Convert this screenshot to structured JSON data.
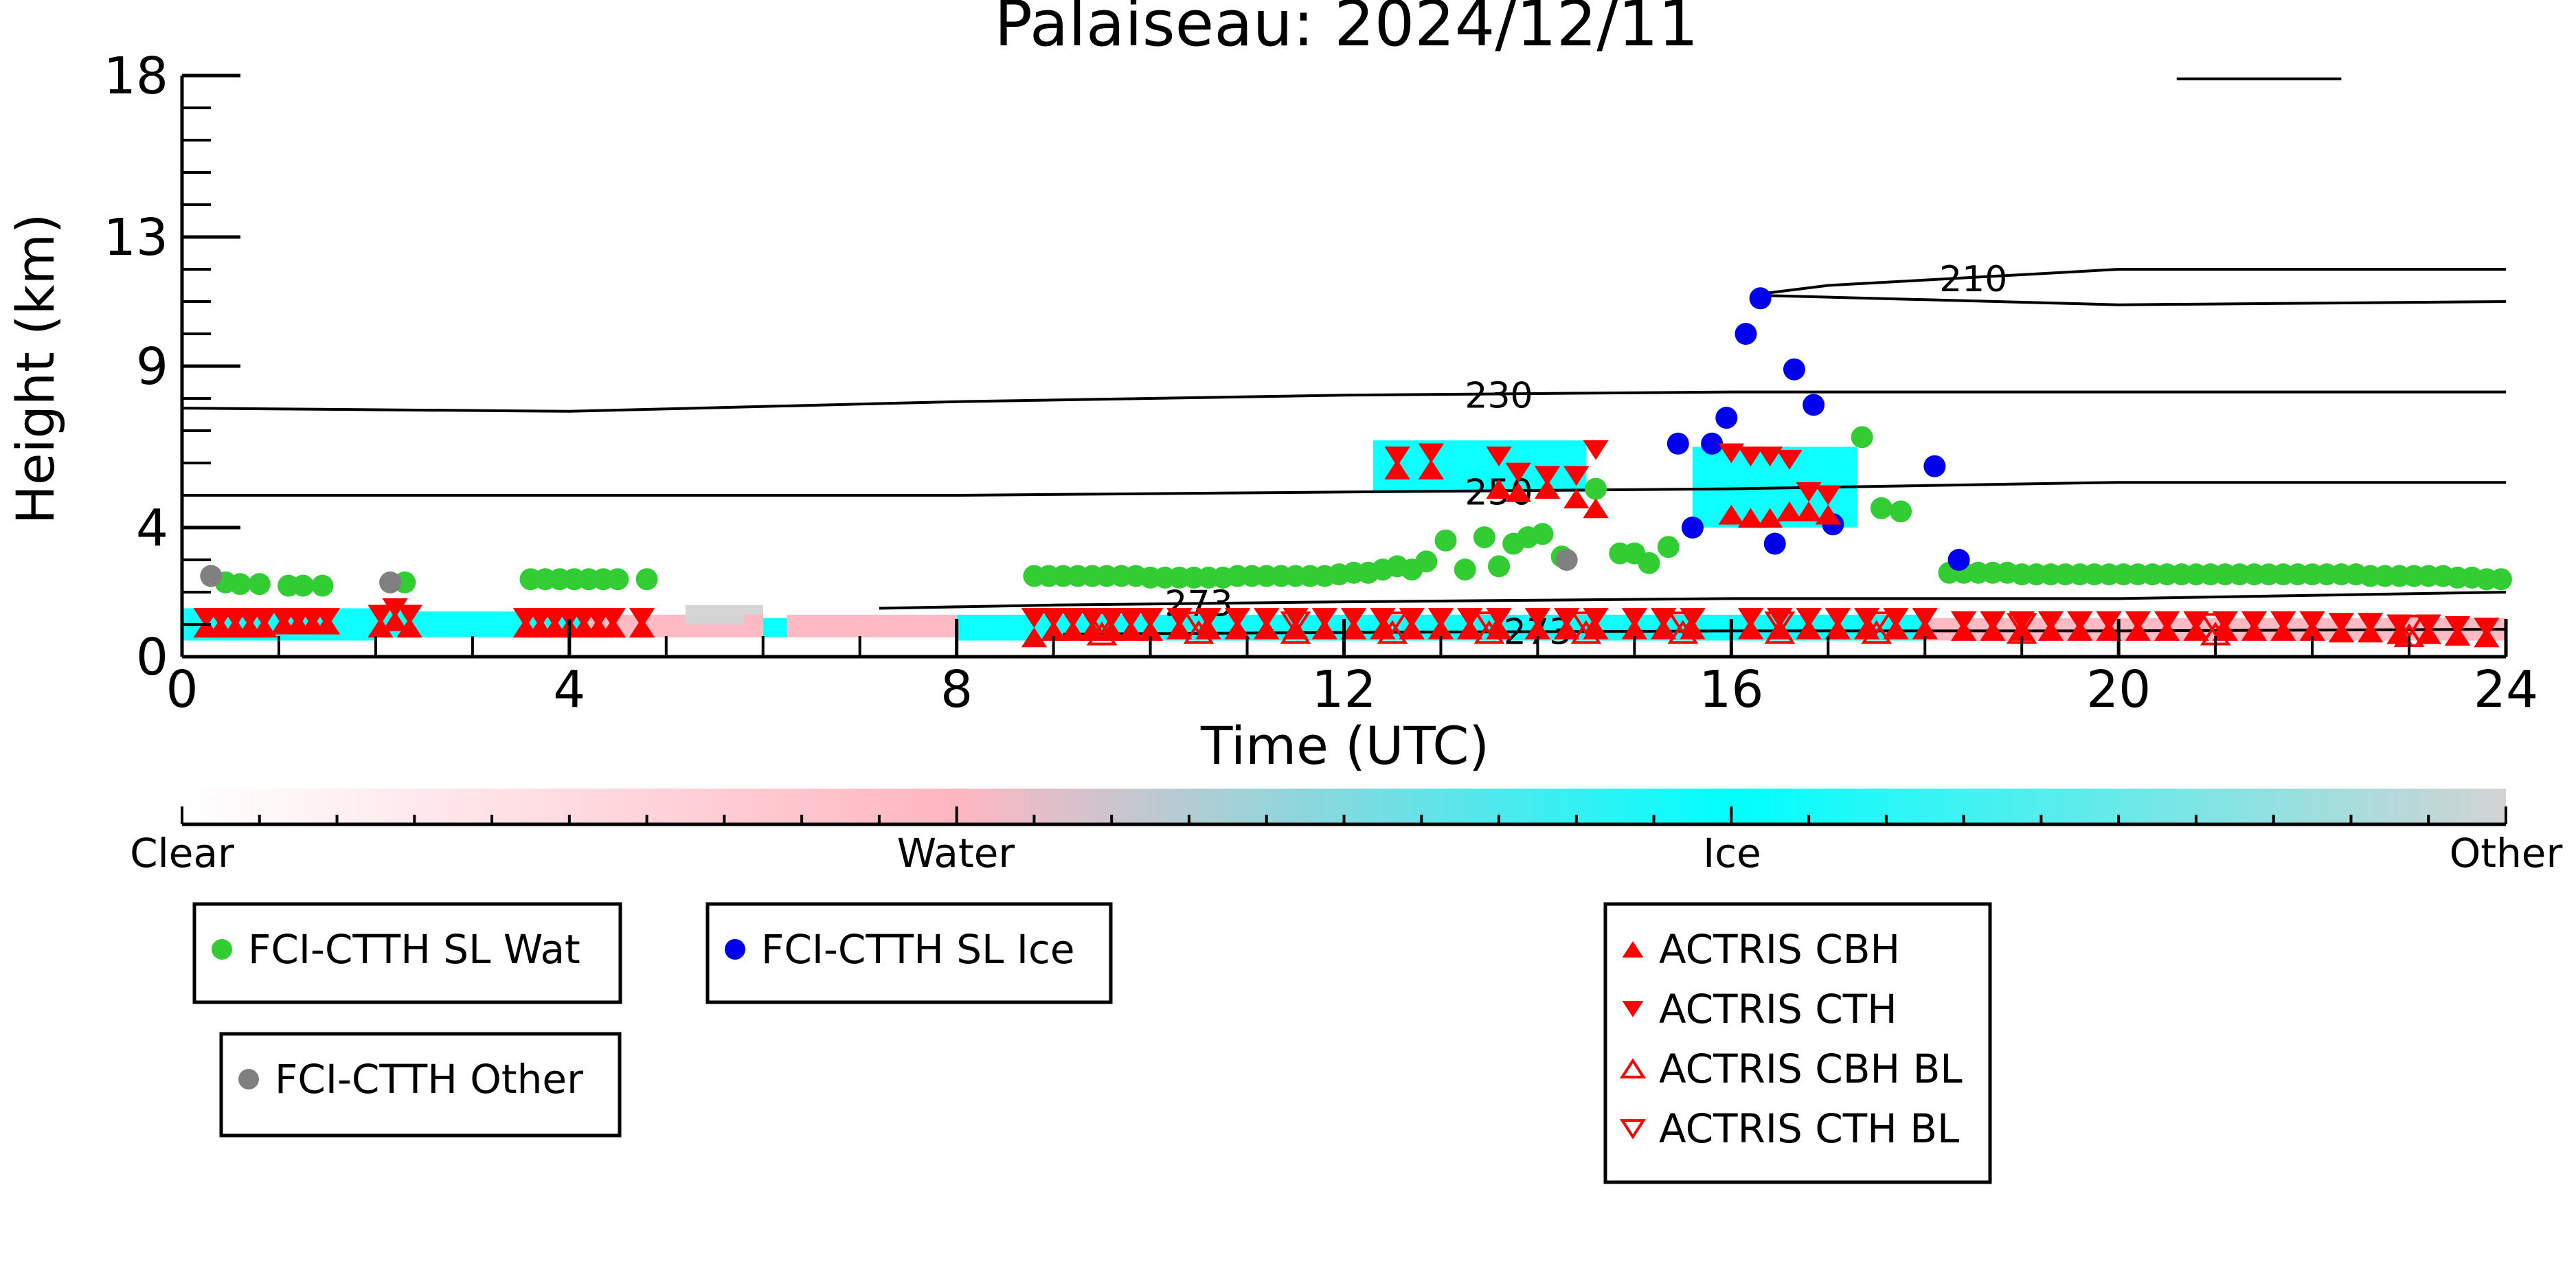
{
  "chart_data": {
    "type": "scatter",
    "title": "Palaiseau: 2024/12/11",
    "xlabel": "Time (UTC)",
    "ylabel": "Height (km)",
    "xlim": [
      0,
      24
    ],
    "ylim": [
      0,
      18
    ],
    "x_ticks": [
      0,
      4,
      8,
      12,
      16,
      20,
      24
    ],
    "y_ticks": [
      0,
      4,
      9,
      13,
      18
    ],
    "grid": false,
    "contours": [
      {
        "label": "210",
        "x": [
          16.2,
          17,
          20,
          24
        ],
        "y": [
          11.2,
          11.5,
          12.0,
          12.0
        ]
      },
      {
        "label": "",
        "x": [
          16.2,
          20,
          24
        ],
        "y": [
          11.2,
          10.9,
          11.0
        ]
      },
      {
        "label": "230",
        "x": [
          0,
          4,
          8,
          12,
          16,
          20,
          24
        ],
        "y": [
          7.7,
          7.6,
          7.9,
          8.1,
          8.2,
          8.2,
          8.2
        ]
      },
      {
        "label": "250",
        "x": [
          0,
          4,
          8,
          12,
          16,
          20,
          24
        ],
        "y": [
          5.0,
          5.0,
          5.0,
          5.1,
          5.2,
          5.4,
          5.4
        ]
      },
      {
        "label": "273",
        "x": [
          7.2,
          9,
          12,
          16,
          20,
          24
        ],
        "y": [
          1.5,
          1.6,
          1.7,
          1.8,
          1.8,
          2.0
        ]
      },
      {
        "label": "273",
        "x": [
          9.1,
          12,
          16,
          20,
          24
        ],
        "y": [
          0.7,
          0.75,
          0.8,
          0.8,
          0.85
        ]
      },
      {
        "label": "",
        "x": [
          20.6,
          22.3
        ],
        "y": [
          17.9,
          17.9
        ]
      }
    ],
    "phase_colorbar": {
      "labels": [
        "Clear",
        "Water",
        "Ice",
        "Other"
      ],
      "colors": [
        "#ffffff",
        "#ffb6c1",
        "#00ffff",
        "#d3d3d3"
      ]
    },
    "phase_bands": [
      {
        "x0": 0.0,
        "x1": 2.0,
        "y0": 0.5,
        "y1": 1.5,
        "color": "#00ffff"
      },
      {
        "x0": 2.0,
        "x1": 4.2,
        "y0": 0.6,
        "y1": 1.4,
        "color": "#00ffff"
      },
      {
        "x0": 4.2,
        "x1": 5.8,
        "y0": 0.6,
        "y1": 1.3,
        "color": "#ffb6c1"
      },
      {
        "x0": 5.2,
        "x1": 6.0,
        "y0": 1.0,
        "y1": 1.6,
        "color": "#d3d3d3"
      },
      {
        "x0": 5.8,
        "x1": 6.0,
        "y0": 0.6,
        "y1": 1.3,
        "color": "#ffb6c1"
      },
      {
        "x0": 6.0,
        "x1": 6.25,
        "y0": 0.6,
        "y1": 1.2,
        "color": "#00ffff"
      },
      {
        "x0": 6.25,
        "x1": 8.0,
        "y0": 0.6,
        "y1": 1.3,
        "color": "#ffb6c1"
      },
      {
        "x0": 8.0,
        "x1": 18.0,
        "y0": 0.5,
        "y1": 1.3,
        "color": "#00ffff"
      },
      {
        "x0": 18.0,
        "x1": 24.0,
        "y0": 0.5,
        "y1": 1.2,
        "color": "#ffb6c1"
      },
      {
        "x0": 12.3,
        "x1": 14.5,
        "y0": 5.1,
        "y1": 6.7,
        "color": "#00ffff"
      },
      {
        "x0": 15.6,
        "x1": 17.3,
        "y0": 4.0,
        "y1": 6.5,
        "color": "#00ffff"
      }
    ],
    "series": [
      {
        "name": "FCI-CTTH SL Wat",
        "marker": "circle",
        "color": "#32cd32",
        "x": [
          0.45,
          0.6,
          0.8,
          1.1,
          1.25,
          1.45,
          2.3,
          3.6,
          3.75,
          3.9,
          4.05,
          4.2,
          4.35,
          4.5,
          4.8,
          8.8,
          8.95,
          9.1,
          9.25,
          9.4,
          9.55,
          9.7,
          9.85,
          10.0,
          10.15,
          10.3,
          10.45,
          10.6,
          10.75,
          10.9,
          11.05,
          11.2,
          11.35,
          11.5,
          11.65,
          11.8,
          11.95,
          12.1,
          12.25,
          12.4,
          12.55,
          12.7,
          12.85,
          13.05,
          13.25,
          13.45,
          13.6,
          13.75,
          13.9,
          14.05,
          14.25,
          14.6,
          14.85,
          15.0,
          15.15,
          15.35,
          17.35,
          17.55,
          17.75,
          18.25,
          18.4,
          18.55,
          18.7,
          18.85,
          19.0,
          19.15,
          19.3,
          19.45,
          19.6,
          19.75,
          19.9,
          20.05,
          20.2,
          20.35,
          20.5,
          20.65,
          20.8,
          20.95,
          21.1,
          21.25,
          21.4,
          21.55,
          21.7,
          21.85,
          22.0,
          22.15,
          22.3,
          22.45,
          22.6,
          22.75,
          22.9,
          23.05,
          23.2,
          23.35,
          23.5,
          23.65,
          23.8,
          23.95
        ],
        "y": [
          2.3,
          2.25,
          2.25,
          2.2,
          2.2,
          2.2,
          2.3,
          2.4,
          2.4,
          2.4,
          2.4,
          2.4,
          2.4,
          2.4,
          2.4,
          2.5,
          2.5,
          2.5,
          2.5,
          2.5,
          2.5,
          2.5,
          2.5,
          2.45,
          2.45,
          2.45,
          2.45,
          2.45,
          2.45,
          2.5,
          2.5,
          2.5,
          2.5,
          2.5,
          2.5,
          2.5,
          2.55,
          2.6,
          2.6,
          2.7,
          2.8,
          2.7,
          2.95,
          3.6,
          2.7,
          3.7,
          2.8,
          3.5,
          3.7,
          3.8,
          3.1,
          5.2,
          3.2,
          3.2,
          2.9,
          3.4,
          6.8,
          4.6,
          4.5,
          2.6,
          2.6,
          2.6,
          2.6,
          2.6,
          2.55,
          2.55,
          2.55,
          2.55,
          2.55,
          2.55,
          2.55,
          2.55,
          2.55,
          2.55,
          2.55,
          2.55,
          2.55,
          2.55,
          2.55,
          2.55,
          2.55,
          2.55,
          2.55,
          2.55,
          2.55,
          2.55,
          2.55,
          2.55,
          2.5,
          2.5,
          2.5,
          2.5,
          2.5,
          2.5,
          2.45,
          2.45,
          2.4,
          2.4
        ]
      },
      {
        "name": "FCI-CTTH SL Ice",
        "marker": "circle",
        "color": "#0000ee",
        "x": [
          15.45,
          15.6,
          15.8,
          15.95,
          16.15,
          16.3,
          16.45,
          16.65,
          16.85,
          17.05,
          18.1,
          18.35
        ],
        "y": [
          6.6,
          4.0,
          6.6,
          7.4,
          10.0,
          11.1,
          3.5,
          8.9,
          7.8,
          4.1,
          5.9,
          3.0
        ]
      },
      {
        "name": "FCI-CTTH Other",
        "marker": "circle",
        "color": "#808080",
        "x": [
          0.3,
          2.15,
          14.3
        ],
        "y": [
          2.5,
          2.3,
          3.0
        ]
      },
      {
        "name": "ACTRIS CBH",
        "marker": "triangle-up",
        "color": "#ff0000",
        "x": [
          0.25,
          0.4,
          0.55,
          0.7,
          0.85,
          1.05,
          1.2,
          1.35,
          1.5,
          2.05,
          2.2,
          2.35,
          3.55,
          3.7,
          3.85,
          4.0,
          4.15,
          4.3,
          4.45,
          4.75,
          8.8,
          9.0,
          9.2,
          9.4,
          9.6,
          9.8,
          10.0,
          10.3,
          10.6,
          10.9,
          11.2,
          11.5,
          11.8,
          12.1,
          12.4,
          12.7,
          13.0,
          13.3,
          13.6,
          14.0,
          14.3,
          14.6,
          15.0,
          15.3,
          15.6,
          16.2,
          16.5,
          16.8,
          17.1,
          17.4,
          17.7,
          18.0,
          18.4,
          18.7,
          19.0,
          19.3,
          19.6,
          19.9,
          20.2,
          20.5,
          20.8,
          21.1,
          21.4,
          21.7,
          22.0,
          22.3,
          22.6,
          22.9,
          23.2,
          23.5,
          23.8,
          12.55,
          12.9,
          13.6,
          13.8,
          14.1,
          14.4,
          14.6,
          16.0,
          16.2,
          16.4,
          16.6,
          16.8,
          17.0
        ],
        "y": [
          0.9,
          0.9,
          0.9,
          0.9,
          0.9,
          1.0,
          1.0,
          1.0,
          1.0,
          0.9,
          1.1,
          0.9,
          0.9,
          0.9,
          0.9,
          0.9,
          0.9,
          0.9,
          0.9,
          0.9,
          0.6,
          0.8,
          0.8,
          0.8,
          0.8,
          0.8,
          0.8,
          0.85,
          0.85,
          0.85,
          0.85,
          0.85,
          0.85,
          0.85,
          0.85,
          0.85,
          0.85,
          0.85,
          0.85,
          0.85,
          0.85,
          0.85,
          0.85,
          0.85,
          0.85,
          0.85,
          0.85,
          0.85,
          0.85,
          0.85,
          0.85,
          0.85,
          0.8,
          0.8,
          0.8,
          0.8,
          0.8,
          0.8,
          0.8,
          0.8,
          0.8,
          0.8,
          0.8,
          0.8,
          0.8,
          0.75,
          0.75,
          0.7,
          0.7,
          0.65,
          0.6,
          5.8,
          5.8,
          5.2,
          5.1,
          5.2,
          4.9,
          4.6,
          4.4,
          4.3,
          4.3,
          4.5,
          4.5,
          4.4
        ]
      },
      {
        "name": "ACTRIS CTH",
        "marker": "triangle-down",
        "color": "#ff0000",
        "x": [
          0.25,
          0.4,
          0.55,
          0.7,
          0.85,
          1.05,
          1.2,
          1.35,
          1.5,
          2.05,
          2.2,
          2.35,
          3.55,
          3.7,
          3.85,
          4.0,
          4.15,
          4.3,
          4.45,
          4.75,
          8.8,
          9.0,
          9.2,
          9.4,
          9.6,
          9.8,
          10.0,
          10.3,
          10.6,
          10.9,
          11.2,
          11.5,
          11.8,
          12.1,
          12.4,
          12.7,
          13.0,
          13.3,
          13.6,
          14.0,
          14.3,
          14.6,
          15.0,
          15.3,
          15.6,
          16.2,
          16.5,
          16.8,
          17.1,
          17.4,
          17.7,
          18.0,
          18.4,
          18.7,
          19.0,
          19.3,
          19.6,
          19.9,
          20.2,
          20.5,
          20.8,
          21.1,
          21.4,
          21.7,
          22.0,
          22.3,
          22.6,
          22.9,
          23.2,
          23.5,
          23.8,
          12.55,
          12.9,
          13.6,
          13.8,
          14.1,
          14.4,
          14.6,
          16.0,
          16.2,
          16.4,
          16.6,
          16.8,
          17.0
        ],
        "y": [
          1.2,
          1.2,
          1.2,
          1.2,
          1.2,
          1.2,
          1.2,
          1.2,
          1.2,
          1.3,
          1.5,
          1.3,
          1.2,
          1.2,
          1.2,
          1.2,
          1.2,
          1.2,
          1.2,
          1.2,
          1.2,
          1.2,
          1.2,
          1.2,
          1.2,
          1.2,
          1.2,
          1.2,
          1.2,
          1.2,
          1.2,
          1.2,
          1.2,
          1.2,
          1.2,
          1.2,
          1.2,
          1.2,
          1.2,
          1.2,
          1.2,
          1.2,
          1.2,
          1.2,
          1.2,
          1.2,
          1.2,
          1.2,
          1.2,
          1.2,
          1.2,
          1.2,
          1.1,
          1.1,
          1.1,
          1.1,
          1.1,
          1.1,
          1.1,
          1.1,
          1.1,
          1.1,
          1.1,
          1.1,
          1.1,
          1.05,
          1.05,
          1.0,
          1.0,
          0.95,
          0.9,
          6.2,
          6.3,
          6.2,
          5.7,
          5.6,
          5.6,
          6.4,
          6.3,
          6.2,
          6.2,
          6.1,
          5.1,
          5.0
        ]
      },
      {
        "name": "ACTRIS CBH BL",
        "marker": "triangle-up-open",
        "color": "#ff0000",
        "x": [
          9.5,
          10.5,
          11.5,
          12.5,
          13.5,
          14.5,
          15.5,
          16.5,
          17.5,
          19.0,
          21.0,
          23.0
        ],
        "y": [
          0.7,
          0.75,
          0.75,
          0.75,
          0.75,
          0.75,
          0.75,
          0.75,
          0.75,
          0.75,
          0.7,
          0.65
        ]
      },
      {
        "name": "ACTRIS CTH BL",
        "marker": "triangle-down-open",
        "color": "#ff0000",
        "x": [
          9.5,
          10.5,
          11.5,
          12.5,
          13.5,
          14.5,
          15.5,
          16.5,
          17.5,
          19.0,
          21.0,
          23.0
        ],
        "y": [
          1.05,
          1.05,
          1.05,
          1.05,
          1.05,
          1.05,
          1.05,
          1.05,
          1.05,
          1.0,
          1.0,
          0.95
        ]
      }
    ]
  }
}
